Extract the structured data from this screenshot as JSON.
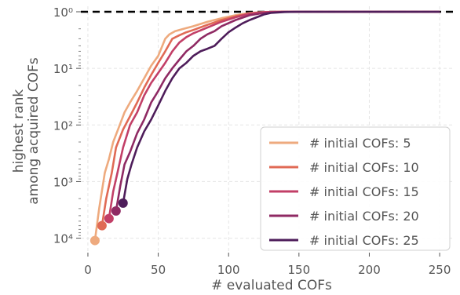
{
  "chart_data": {
    "type": "line",
    "xlabel": "# evaluated COFs",
    "ylabel_lines": [
      "highest rank",
      "among acquired COFs"
    ],
    "xlim": [
      -5,
      260
    ],
    "x_ticks": [
      0,
      50,
      100,
      150,
      200,
      250
    ],
    "y_scale": "log-inverted",
    "ylim": [
      18000,
      0.8
    ],
    "y_ticks": [
      {
        "value": 1,
        "label": "10⁰"
      },
      {
        "value": 10,
        "label": "10¹"
      },
      {
        "value": 100,
        "label": "10²"
      },
      {
        "value": 1000,
        "label": "10³"
      },
      {
        "value": 10000,
        "label": "10⁴"
      }
    ],
    "reference_line": {
      "y": 1,
      "style": "dashed",
      "color": "#000000"
    },
    "grid": true,
    "legend_position": "lower-right",
    "series": [
      {
        "name": "# initial COFs: 5",
        "color": "#eeaa7e",
        "start_marker": [
          5,
          11000
        ],
        "points": [
          [
            5,
            11000
          ],
          [
            8,
            3000
          ],
          [
            12,
            700
          ],
          [
            15,
            400
          ],
          [
            18,
            200
          ],
          [
            22,
            110
          ],
          [
            26,
            60
          ],
          [
            30,
            40
          ],
          [
            35,
            25
          ],
          [
            40,
            15
          ],
          [
            45,
            9
          ],
          [
            50,
            6
          ],
          [
            55,
            3
          ],
          [
            58,
            2.5
          ],
          [
            62,
            2.2
          ],
          [
            68,
            2
          ],
          [
            75,
            1.8
          ],
          [
            85,
            1.5
          ],
          [
            95,
            1.3
          ],
          [
            105,
            1.15
          ],
          [
            115,
            1.05
          ],
          [
            125,
            1.01
          ],
          [
            135,
            1
          ],
          [
            250,
            1
          ]
        ]
      },
      {
        "name": "# initial COFs: 10",
        "color": "#e06a55",
        "start_marker": [
          10,
          6000
        ],
        "points": [
          [
            10,
            6000
          ],
          [
            13,
            2000
          ],
          [
            17,
            700
          ],
          [
            20,
            250
          ],
          [
            25,
            120
          ],
          [
            30,
            70
          ],
          [
            35,
            40
          ],
          [
            40,
            22
          ],
          [
            45,
            13
          ],
          [
            50,
            8
          ],
          [
            55,
            5
          ],
          [
            60,
            3
          ],
          [
            65,
            2.6
          ],
          [
            70,
            2.3
          ],
          [
            75,
            2.1
          ],
          [
            85,
            1.7
          ],
          [
            95,
            1.4
          ],
          [
            105,
            1.2
          ],
          [
            115,
            1.07
          ],
          [
            125,
            1.02
          ],
          [
            135,
            1
          ],
          [
            250,
            1
          ]
        ]
      },
      {
        "name": "# initial COFs: 15",
        "color": "#c23f67",
        "start_marker": [
          15,
          4500
        ],
        "points": [
          [
            15,
            4500
          ],
          [
            18,
            1500
          ],
          [
            21,
            700
          ],
          [
            25,
            250
          ],
          [
            30,
            100
          ],
          [
            35,
            60
          ],
          [
            40,
            30
          ],
          [
            45,
            18
          ],
          [
            50,
            12
          ],
          [
            55,
            8
          ],
          [
            60,
            5
          ],
          [
            65,
            3.5
          ],
          [
            70,
            2.8
          ],
          [
            75,
            2.4
          ],
          [
            85,
            1.9
          ],
          [
            95,
            1.5
          ],
          [
            105,
            1.25
          ],
          [
            115,
            1.08
          ],
          [
            125,
            1.02
          ],
          [
            135,
            1
          ],
          [
            250,
            1
          ]
        ]
      },
      {
        "name": "# initial COFs: 20",
        "color": "#8f2a63",
        "start_marker": [
          20,
          3300
        ],
        "points": [
          [
            20,
            3300
          ],
          [
            23,
            1200
          ],
          [
            26,
            500
          ],
          [
            30,
            300
          ],
          [
            35,
            140
          ],
          [
            40,
            80
          ],
          [
            45,
            40
          ],
          [
            50,
            25
          ],
          [
            55,
            15
          ],
          [
            60,
            10
          ],
          [
            65,
            7
          ],
          [
            70,
            5
          ],
          [
            75,
            4
          ],
          [
            80,
            3
          ],
          [
            85,
            2.5
          ],
          [
            90,
            2.2
          ],
          [
            95,
            1.8
          ],
          [
            105,
            1.4
          ],
          [
            115,
            1.15
          ],
          [
            125,
            1.05
          ],
          [
            135,
            1.01
          ],
          [
            145,
            1
          ],
          [
            250,
            1
          ]
        ]
      },
      {
        "name": "# initial COFs: 25",
        "color": "#4e1d5a",
        "start_marker": [
          25,
          2400
        ],
        "points": [
          [
            25,
            2400
          ],
          [
            28,
            900
          ],
          [
            31,
            500
          ],
          [
            35,
            250
          ],
          [
            40,
            130
          ],
          [
            45,
            80
          ],
          [
            50,
            45
          ],
          [
            55,
            25
          ],
          [
            60,
            15
          ],
          [
            65,
            10
          ],
          [
            70,
            8
          ],
          [
            75,
            6
          ],
          [
            80,
            5
          ],
          [
            85,
            4.5
          ],
          [
            90,
            4
          ],
          [
            95,
            3
          ],
          [
            100,
            2.3
          ],
          [
            105,
            1.9
          ],
          [
            110,
            1.6
          ],
          [
            115,
            1.4
          ],
          [
            120,
            1.25
          ],
          [
            125,
            1.12
          ],
          [
            130,
            1.05
          ],
          [
            140,
            1.01
          ],
          [
            150,
            1
          ],
          [
            250,
            1
          ]
        ]
      }
    ]
  }
}
